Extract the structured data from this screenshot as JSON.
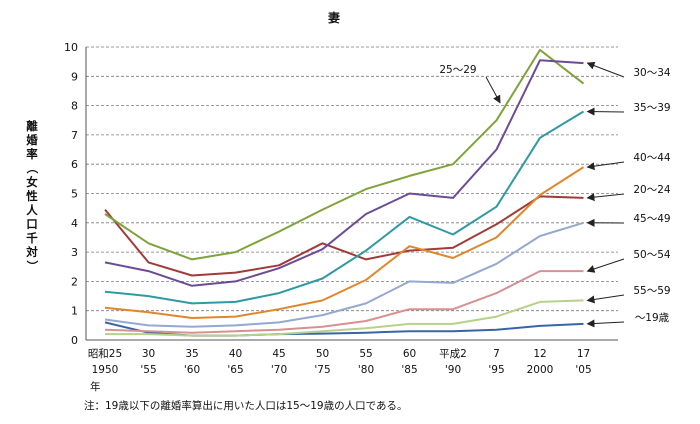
{
  "chart_data": {
    "type": "line",
    "title": "妻",
    "ylabel": "離婚率（女性人口千対）",
    "xunit": "年",
    "note": "注：19歳以下の離婚率算出に用いた人口は15～19歳の人口である。",
    "ylim": [
      0,
      10
    ],
    "yticks": [
      "0",
      "1",
      "2",
      "3",
      "4",
      "5",
      "6",
      "7",
      "8",
      "9",
      "10"
    ],
    "grid": "horizontal-dashed",
    "x_categories": [
      {
        "top": "昭和25",
        "bottom": "1950"
      },
      {
        "top": "30",
        "bottom": "'55"
      },
      {
        "top": "35",
        "bottom": "'60"
      },
      {
        "top": "40",
        "bottom": "'65"
      },
      {
        "top": "45",
        "bottom": "'70"
      },
      {
        "top": "50",
        "bottom": "'75"
      },
      {
        "top": "55",
        "bottom": "'80"
      },
      {
        "top": "60",
        "bottom": "'85"
      },
      {
        "top": "平成2",
        "bottom": "'90"
      },
      {
        "top": "7",
        "bottom": "'95"
      },
      {
        "top": "12",
        "bottom": "2000"
      },
      {
        "top": "17",
        "bottom": "'05"
      }
    ],
    "series": [
      {
        "name": "～19歳",
        "color": "#3a64a8",
        "values": [
          0.6,
          0.25,
          0.15,
          0.15,
          0.2,
          0.22,
          0.25,
          0.3,
          0.3,
          0.35,
          0.48,
          0.55
        ]
      },
      {
        "name": "20～24",
        "color": "#a23a3a",
        "values": [
          4.45,
          2.65,
          2.2,
          2.3,
          2.55,
          3.3,
          2.75,
          3.05,
          3.15,
          3.95,
          4.9,
          4.85
        ]
      },
      {
        "name": "25～29",
        "color": "#7ea33c",
        "values": [
          4.3,
          3.3,
          2.75,
          3.0,
          3.7,
          4.45,
          5.15,
          5.6,
          6.0,
          7.5,
          9.9,
          8.75
        ]
      },
      {
        "name": "30～34",
        "color": "#6c4c94",
        "values": [
          2.65,
          2.35,
          1.85,
          2.0,
          2.45,
          3.1,
          4.3,
          5.0,
          4.85,
          6.5,
          9.55,
          9.45
        ]
      },
      {
        "name": "35～39",
        "color": "#2f9aa3",
        "values": [
          1.65,
          1.5,
          1.25,
          1.3,
          1.6,
          2.1,
          3.05,
          4.2,
          3.6,
          4.55,
          6.9,
          7.8
        ]
      },
      {
        "name": "40～44",
        "color": "#e0862c",
        "values": [
          1.1,
          0.95,
          0.75,
          0.8,
          1.05,
          1.35,
          2.05,
          3.2,
          2.8,
          3.5,
          4.95,
          5.9
        ]
      },
      {
        "name": "45～49",
        "color": "#93a9d0",
        "values": [
          0.7,
          0.5,
          0.45,
          0.5,
          0.6,
          0.85,
          1.25,
          2.0,
          1.95,
          2.6,
          3.55,
          4.0
        ]
      },
      {
        "name": "50～54",
        "color": "#d89090",
        "values": [
          0.35,
          0.3,
          0.25,
          0.3,
          0.35,
          0.45,
          0.65,
          1.05,
          1.05,
          1.6,
          2.35,
          2.35
        ]
      },
      {
        "name": "55～59",
        "color": "#b7d18a",
        "values": [
          0.2,
          0.2,
          0.15,
          0.15,
          0.2,
          0.3,
          0.4,
          0.55,
          0.55,
          0.8,
          1.3,
          1.35
        ]
      }
    ]
  }
}
